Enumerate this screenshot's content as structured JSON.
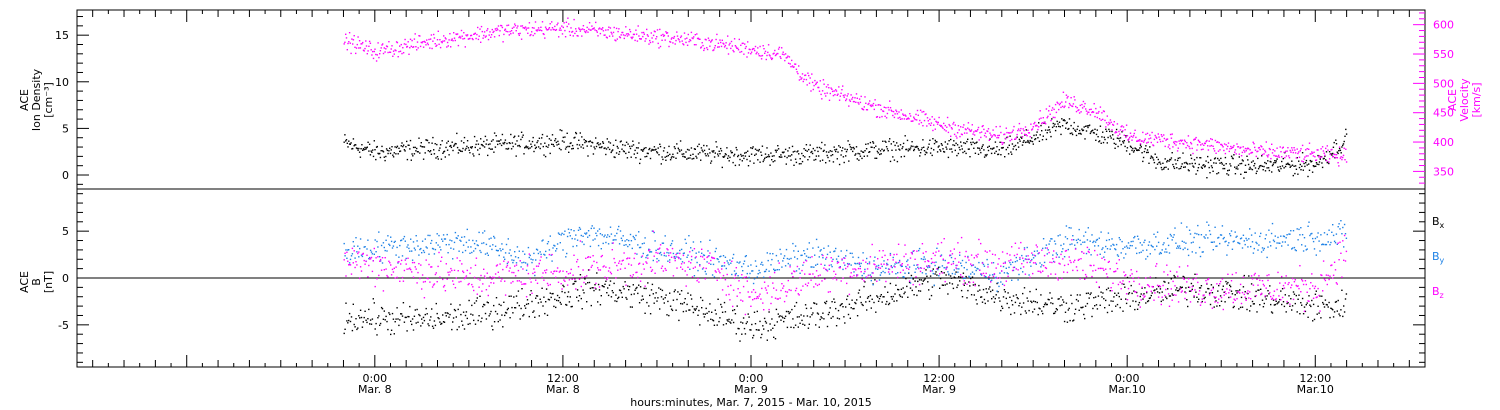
{
  "chart_data": [
    {
      "type": "scatter",
      "panel": "top",
      "ylabel_left": [
        "ACE",
        "Ion Density",
        "[cm⁻³]"
      ],
      "ylabel_right": [
        "ACE",
        "Velocity",
        "[km/s]"
      ],
      "ylim_left": [
        -1.5,
        17.7
      ],
      "ylim_right": [
        320,
        625
      ],
      "yticks_left": [
        0,
        5,
        10,
        15
      ],
      "yticks_right": [
        350,
        400,
        450,
        500,
        550,
        600
      ],
      "grid": false,
      "series": [
        {
          "name": "",
          "axis": "left",
          "color": "#000000",
          "x_hours": [
            -2,
            0,
            4,
            8,
            12,
            16,
            20,
            24,
            28,
            32,
            36,
            40,
            44,
            48,
            50,
            52,
            56,
            60,
            62
          ],
          "values": [
            3.5,
            2.5,
            3,
            3.3,
            3.7,
            2.8,
            2.4,
            2.2,
            2.3,
            2.8,
            3,
            2.7,
            5.5,
            3.5,
            1.5,
            1.2,
            1.0,
            1.2,
            4.0
          ]
        },
        {
          "name": "",
          "axis": "right",
          "color": "#ff00ff",
          "x_hours": [
            -2,
            0,
            4,
            8,
            12,
            14,
            16,
            20,
            24,
            26,
            28,
            32,
            34,
            36,
            40,
            42,
            44,
            46,
            48,
            52,
            56,
            60,
            62
          ],
          "values": [
            575,
            555,
            575,
            590,
            595,
            590,
            585,
            575,
            560,
            550,
            495,
            460,
            445,
            430,
            410,
            430,
            470,
            455,
            410,
            400,
            385,
            380,
            375
          ]
        }
      ]
    },
    {
      "type": "scatter",
      "panel": "bottom",
      "ylabel": [
        "ACE",
        "B",
        "[nT]"
      ],
      "ylim": [
        -9.5,
        9.5
      ],
      "yticks": [
        -5,
        0,
        5
      ],
      "zero_line": true,
      "grid": false,
      "legend_position": "right",
      "series": [
        {
          "name": "Bx",
          "label_base": "B",
          "label_sub": "x",
          "color": "#000000",
          "x_hours": [
            -2,
            2,
            6,
            10,
            14,
            18,
            22,
            24,
            28,
            32,
            36,
            40,
            44,
            48,
            52,
            56,
            60,
            62
          ],
          "values": [
            -4,
            -4.5,
            -4,
            -2.5,
            -1,
            -2,
            -4,
            -5,
            -4,
            -2,
            0,
            -2,
            -3,
            -2,
            -1,
            -2,
            -3,
            -3
          ]
        },
        {
          "name": "By",
          "label_base": "B",
          "label_sub": "y",
          "color": "#1e82e6",
          "x_hours": [
            -2,
            2,
            6,
            10,
            13,
            16,
            20,
            24,
            28,
            32,
            36,
            40,
            44,
            48,
            52,
            56,
            60,
            62
          ],
          "values": [
            3,
            3.5,
            4,
            2,
            5,
            4,
            2.5,
            1,
            2.5,
            1,
            1.5,
            0.5,
            4,
            3.5,
            4,
            4,
            4.5,
            4.5
          ]
        },
        {
          "name": "Bz",
          "label_base": "B",
          "label_sub": "z",
          "color": "#ff00ff",
          "x_hours": [
            -2,
            2,
            6,
            10,
            14,
            18,
            22,
            24,
            28,
            32,
            36,
            40,
            44,
            48,
            52,
            56,
            60,
            62
          ],
          "values": [
            2,
            1,
            0,
            0.5,
            1,
            2,
            1,
            -2,
            0.5,
            1.5,
            2,
            1.5,
            2,
            0,
            -1,
            -1,
            -1,
            3
          ]
        }
      ]
    }
  ],
  "x_axis": {
    "xlim_hours": [
      -19,
      67
    ],
    "ticks": [
      {
        "hour": 0,
        "time": "0:00",
        "day": "Mar. 8"
      },
      {
        "hour": 12,
        "time": "12:00",
        "day": "Mar. 8"
      },
      {
        "hour": 24,
        "time": "0:00",
        "day": "Mar. 9"
      },
      {
        "hour": 36,
        "time": "12:00",
        "day": "Mar. 9"
      },
      {
        "hour": 48,
        "time": "0:00",
        "day": "Mar.10"
      },
      {
        "hour": 60,
        "time": "12:00",
        "day": "Mar.10"
      }
    ],
    "xlabel": "hours:minutes, Mar.  7, 2015 - Mar. 10, 2015"
  }
}
